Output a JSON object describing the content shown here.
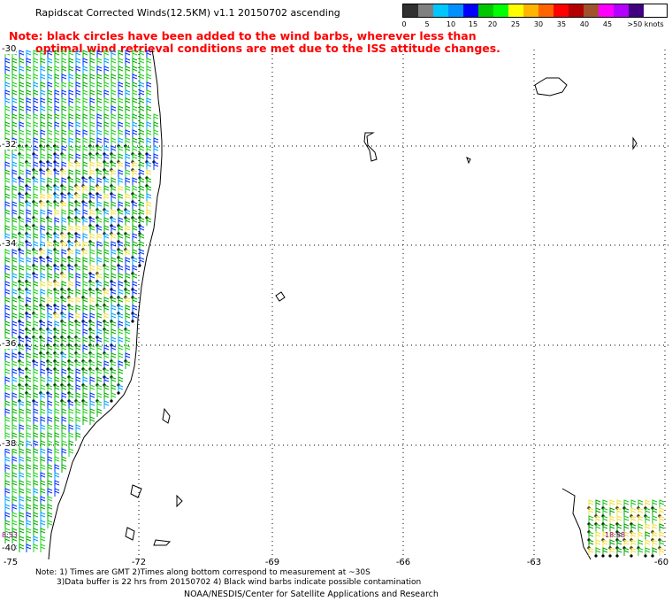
{
  "title": "Rapidscat Corrected Winds(12.5KM) v1.1 20150702 ascending",
  "note_line1": "Note: black circles have been added to the wind barbs, wherever less than",
  "note_line2": "optimal wind retrieval conditions are met due to the ISS attitude changes.",
  "legend": {
    "labels": [
      "0",
      "5",
      "10",
      "15",
      "20",
      "25",
      "30",
      "35",
      "40",
      "45",
      ">50 knots"
    ],
    "colors": [
      "#303030",
      "#808080",
      "#00c8ff",
      "#0090ff",
      "#0000ff",
      "#00c800",
      "#00ff00",
      "#ffff00",
      "#ffb400",
      "#ff6400",
      "#ff0000",
      "#b40000",
      "#a0522d",
      "#ff00ff",
      "#b400ff",
      "#400080"
    ]
  },
  "axes": {
    "lon_ticks": [
      "-75",
      "-72",
      "-69",
      "-66",
      "-63",
      "-60"
    ],
    "lat_ticks": [
      "-30",
      "-32",
      "-34",
      "-36",
      "-38",
      "-40"
    ]
  },
  "time_labels": [
    "8:53",
    "18:58"
  ],
  "footer": {
    "line1": "Note: 1) Times are GMT 2)Times along bottom correspond to measurement at ~30S",
    "line2": "3)Data buffer is 22 hrs from 20150702 4) Black wind barbs indicate possible contamination",
    "credit": "NOAA/NESDIS/Center for Satellite Applications and Research"
  }
}
